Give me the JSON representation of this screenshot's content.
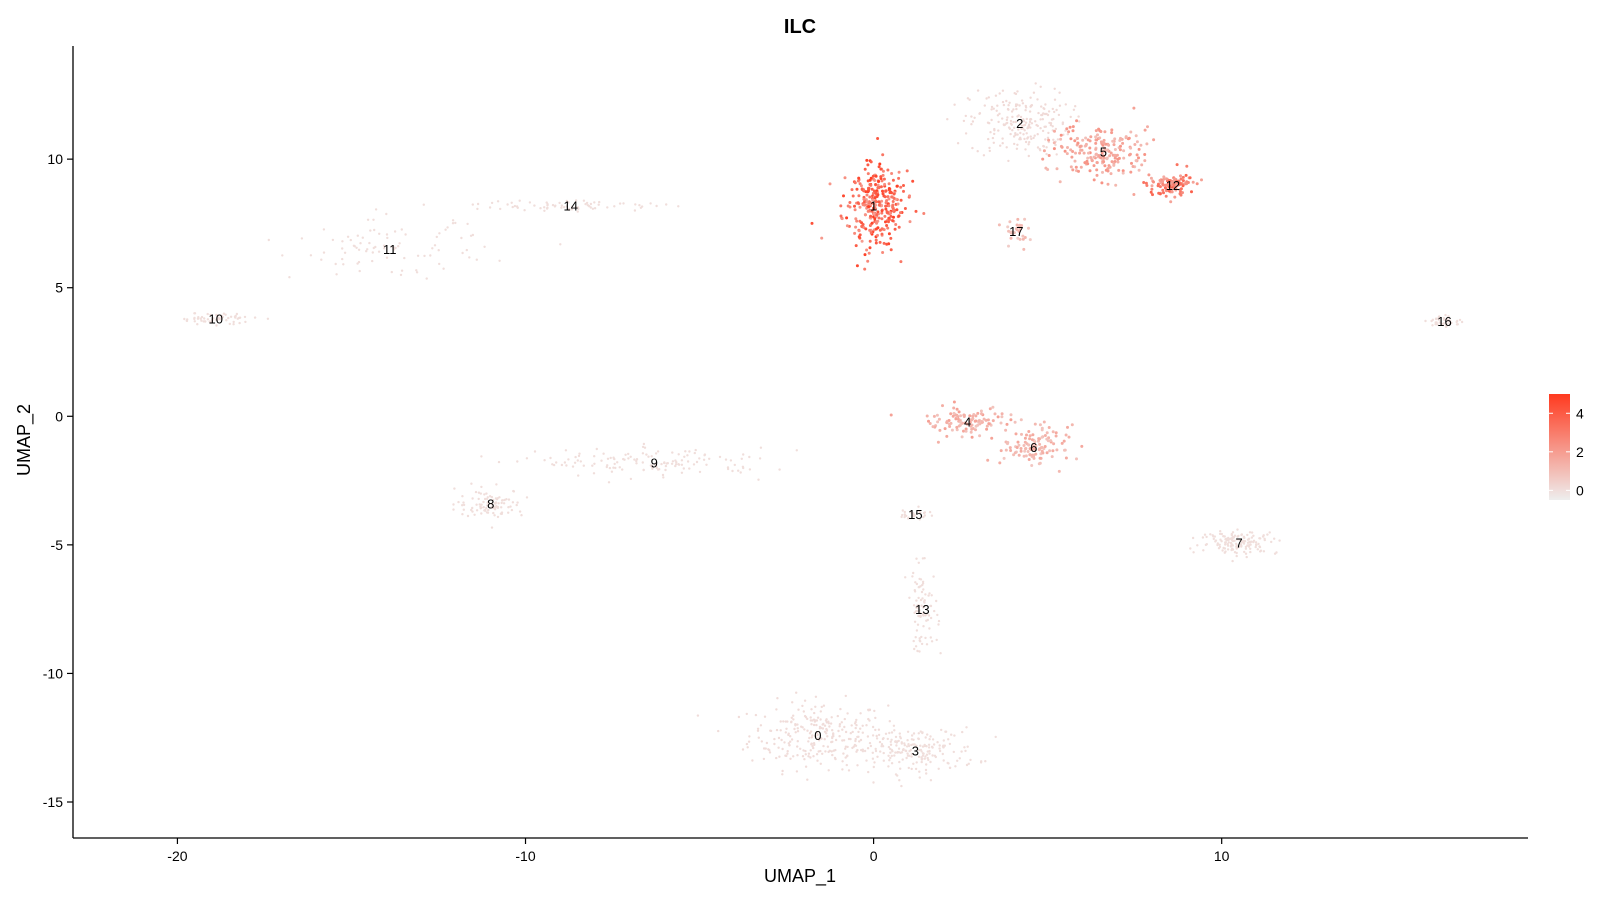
{
  "chart_data": {
    "type": "scatter",
    "title": "ILC",
    "xlabel": "UMAP_1",
    "ylabel": "UMAP_2",
    "xlim": [
      -23,
      18.8
    ],
    "ylim": [
      -16.4,
      14.4
    ],
    "x_ticks": [
      -20,
      -10,
      0,
      10
    ],
    "x_tick_labels": [
      "-20",
      "-10",
      "0",
      "10"
    ],
    "y_ticks": [
      -15,
      -10,
      -5,
      0,
      5,
      10
    ],
    "y_tick_labels": [
      "-15",
      "-10",
      "-5",
      "0",
      "5",
      "10"
    ],
    "grid": false,
    "legend": {
      "placement": "right",
      "type": "colorbar",
      "min": -0.5,
      "max": 5,
      "ticks": [
        0,
        2,
        4
      ],
      "tick_labels": [
        "0",
        "2",
        "4"
      ],
      "low_color": "#eeeeee",
      "high_color": "#ff3a1f"
    },
    "clusters": [
      {
        "id": "0",
        "label": "0",
        "x": -1.6,
        "y": -12.4,
        "expression": 0.05
      },
      {
        "id": "1",
        "label": "1",
        "x": 0.0,
        "y": 8.2,
        "expression": 3.8
      },
      {
        "id": "2",
        "label": "2",
        "x": 4.2,
        "y": 11.4,
        "expression": 0.1
      },
      {
        "id": "3",
        "label": "3",
        "x": 1.2,
        "y": -13.0,
        "expression": 0.0
      },
      {
        "id": "4",
        "label": "4",
        "x": 2.7,
        "y": -0.2,
        "expression": 1.5
      },
      {
        "id": "5",
        "label": "5",
        "x": 6.6,
        "y": 10.3,
        "expression": 1.8
      },
      {
        "id": "6",
        "label": "6",
        "x": 4.6,
        "y": -1.2,
        "expression": 1.3
      },
      {
        "id": "7",
        "label": "7",
        "x": 10.5,
        "y": -4.9,
        "expression": 0.0
      },
      {
        "id": "8",
        "label": "8",
        "x": -11.0,
        "y": -3.4,
        "expression": 0.0
      },
      {
        "id": "9",
        "label": "9",
        "x": -6.3,
        "y": -1.8,
        "expression": 0.0
      },
      {
        "id": "10",
        "label": "10",
        "x": -18.9,
        "y": 3.8,
        "expression": 0.0
      },
      {
        "id": "11",
        "label": "11",
        "x": -13.9,
        "y": 6.5,
        "expression": 0.0
      },
      {
        "id": "12",
        "label": "12",
        "x": 8.6,
        "y": 9.0,
        "expression": 3.0
      },
      {
        "id": "13",
        "label": "13",
        "x": 1.4,
        "y": -7.5,
        "expression": 0.0
      },
      {
        "id": "14",
        "label": "14",
        "x": -8.7,
        "y": 8.2,
        "expression": 0.0
      },
      {
        "id": "15",
        "label": "15",
        "x": 1.2,
        "y": -3.8,
        "expression": 0.0
      },
      {
        "id": "16",
        "label": "16",
        "x": 16.4,
        "y": 3.7,
        "expression": 0.0
      },
      {
        "id": "17",
        "label": "17",
        "x": 4.1,
        "y": 7.2,
        "expression": 1.0
      }
    ]
  }
}
